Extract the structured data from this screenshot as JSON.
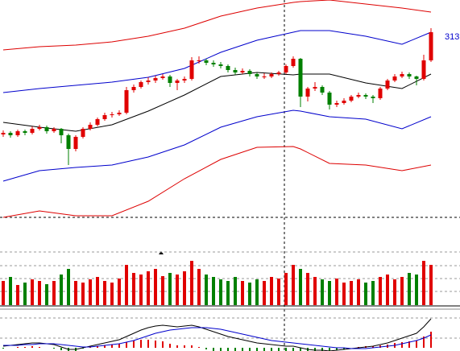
{
  "chart_data": {
    "type": "candlestick",
    "annotation": "313",
    "ylim": [
      58,
      358
    ],
    "up_color": "#e00000",
    "down_color": "#008000",
    "candles": [
      [
        191,
        196,
        188,
        193
      ],
      [
        193,
        195,
        187,
        190
      ],
      [
        190,
        197,
        188,
        195
      ],
      [
        195,
        197,
        190,
        193
      ],
      [
        193,
        201,
        191,
        198
      ],
      [
        198,
        203,
        196,
        200
      ],
      [
        200,
        202,
        192,
        195
      ],
      [
        195,
        200,
        193,
        198
      ],
      [
        198,
        199,
        180,
        190
      ],
      [
        190,
        192,
        153,
        173
      ],
      [
        173,
        190,
        170,
        188
      ],
      [
        188,
        200,
        186,
        198
      ],
      [
        198,
        206,
        196,
        203
      ],
      [
        203,
        212,
        201,
        210
      ],
      [
        210,
        218,
        208,
        215
      ],
      [
        215,
        219,
        212,
        216
      ],
      [
        216,
        221,
        214,
        218
      ],
      [
        218,
        250,
        216,
        246
      ],
      [
        246,
        253,
        243,
        250
      ],
      [
        250,
        258,
        248,
        256
      ],
      [
        256,
        262,
        253,
        258
      ],
      [
        258,
        264,
        255,
        261
      ],
      [
        261,
        266,
        259,
        263
      ],
      [
        263,
        265,
        250,
        255
      ],
      [
        255,
        260,
        246,
        258
      ],
      [
        258,
        263,
        255,
        260
      ],
      [
        260,
        287,
        258,
        283
      ],
      [
        283,
        288,
        279,
        283
      ],
      [
        283,
        285,
        277,
        280
      ],
      [
        280,
        283,
        275,
        278
      ],
      [
        278,
        281,
        273,
        276
      ],
      [
        276,
        278,
        268,
        271
      ],
      [
        271,
        274,
        265,
        268
      ],
      [
        268,
        273,
        266,
        270
      ],
      [
        270,
        272,
        263,
        266
      ],
      [
        266,
        268,
        260,
        263
      ],
      [
        263,
        267,
        260,
        263
      ],
      [
        263,
        268,
        261,
        266
      ],
      [
        266,
        270,
        264,
        268
      ],
      [
        268,
        278,
        266,
        276
      ],
      [
        276,
        288,
        274,
        285
      ],
      [
        285,
        286,
        225,
        238
      ],
      [
        238,
        250,
        232,
        248
      ],
      [
        248,
        256,
        245,
        250
      ],
      [
        250,
        252,
        240,
        243
      ],
      [
        243,
        245,
        222,
        228
      ],
      [
        228,
        233,
        225,
        230
      ],
      [
        230,
        236,
        228,
        233
      ],
      [
        233,
        240,
        231,
        238
      ],
      [
        238,
        243,
        236,
        240
      ],
      [
        240,
        242,
        235,
        238
      ],
      [
        238,
        240,
        230,
        236
      ],
      [
        236,
        250,
        234,
        248
      ],
      [
        248,
        260,
        246,
        258
      ],
      [
        258,
        266,
        256,
        263
      ],
      [
        263,
        269,
        261,
        266
      ],
      [
        266,
        268,
        260,
        263
      ],
      [
        263,
        264,
        252,
        260
      ],
      [
        260,
        290,
        258,
        283
      ],
      [
        283,
        323,
        281,
        318
      ]
    ],
    "band_x": [
      0,
      5,
      10,
      15,
      20,
      25,
      30,
      35,
      40,
      41,
      45,
      50,
      55,
      59
    ],
    "bands": [
      {
        "color": "#000000",
        "values": [
          206,
          200,
          195,
          203,
          220,
          240,
          263,
          268,
          265,
          266,
          266,
          255,
          248,
          266
        ]
      },
      {
        "color": "#0000cc",
        "values": [
          243,
          248,
          252,
          256,
          262,
          273,
          293,
          308,
          318,
          320,
          320,
          313,
          303,
          318
        ]
      },
      {
        "color": "#0000cc",
        "values": [
          133,
          146,
          150,
          153,
          163,
          178,
          200,
          213,
          221,
          220,
          213,
          210,
          198,
          213
        ]
      },
      {
        "color": "#dd0000",
        "values": [
          296,
          300,
          302,
          306,
          313,
          323,
          338,
          348,
          355,
          356,
          358,
          353,
          348,
          343
        ]
      },
      {
        "color": "#dd0000",
        "values": [
          88,
          96,
          90,
          90,
          108,
          136,
          160,
          175,
          176,
          173,
          155,
          153,
          146,
          153
        ]
      }
    ],
    "volume": [
      30,
      35,
      25,
      28,
      32,
      30,
      26,
      30,
      38,
      45,
      30,
      28,
      32,
      35,
      30,
      28,
      33,
      50,
      40,
      38,
      42,
      45,
      36,
      40,
      38,
      42,
      55,
      45,
      38,
      35,
      32,
      30,
      35,
      30,
      28,
      32,
      30,
      35,
      33,
      40,
      50,
      45,
      40,
      35,
      32,
      30,
      33,
      28,
      30,
      32,
      28,
      30,
      35,
      38,
      32,
      35,
      40,
      38,
      55,
      50
    ],
    "vol_ylim": [
      0,
      80
    ],
    "vol_yticks": [
      17,
      33,
      49,
      66
    ],
    "macd": {
      "dif": [
        2,
        3,
        4,
        5,
        6,
        6,
        5,
        4,
        1,
        -2,
        -2,
        0,
        2,
        4,
        6,
        8,
        10,
        14,
        18,
        22,
        25,
        27,
        28,
        27,
        26,
        27,
        28,
        26,
        23,
        20,
        17,
        14,
        12,
        10,
        8,
        6,
        5,
        4,
        3,
        2,
        2,
        0,
        -2,
        -3,
        -3,
        -4,
        -3,
        -2,
        -1,
        0,
        1,
        2,
        4,
        6,
        9,
        12,
        15,
        18,
        26,
        36
      ],
      "dea": [
        3,
        3,
        3,
        4,
        4,
        5,
        5,
        5,
        4,
        3,
        2,
        1,
        1,
        2,
        3,
        4,
        5,
        7,
        9,
        12,
        15,
        18,
        20,
        22,
        23,
        24,
        25,
        25,
        25,
        24,
        23,
        21,
        19,
        17,
        15,
        13,
        11,
        9,
        8,
        7,
        6,
        5,
        4,
        3,
        2,
        1,
        0,
        0,
        -1,
        -1,
        -1,
        0,
        1,
        2,
        3,
        5,
        7,
        9,
        12,
        16
      ],
      "hist": [
        -1,
        0,
        1,
        1,
        2,
        1,
        0,
        -1,
        -3,
        -5,
        -4,
        -1,
        1,
        2,
        3,
        4,
        5,
        7,
        9,
        10,
        10,
        9,
        8,
        5,
        3,
        3,
        3,
        1,
        -2,
        -4,
        -6,
        -7,
        -7,
        -7,
        -7,
        -7,
        -6,
        -5,
        -5,
        -5,
        -4,
        -5,
        -6,
        -6,
        -5,
        -5,
        -3,
        -2,
        0,
        1,
        2,
        2,
        3,
        4,
        6,
        7,
        8,
        9,
        14,
        20
      ],
      "dif_color": "#000000",
      "dea_color": "#0000cc",
      "ylim": [
        -4,
        50
      ],
      "yticks": [
        12,
        37
      ]
    }
  }
}
